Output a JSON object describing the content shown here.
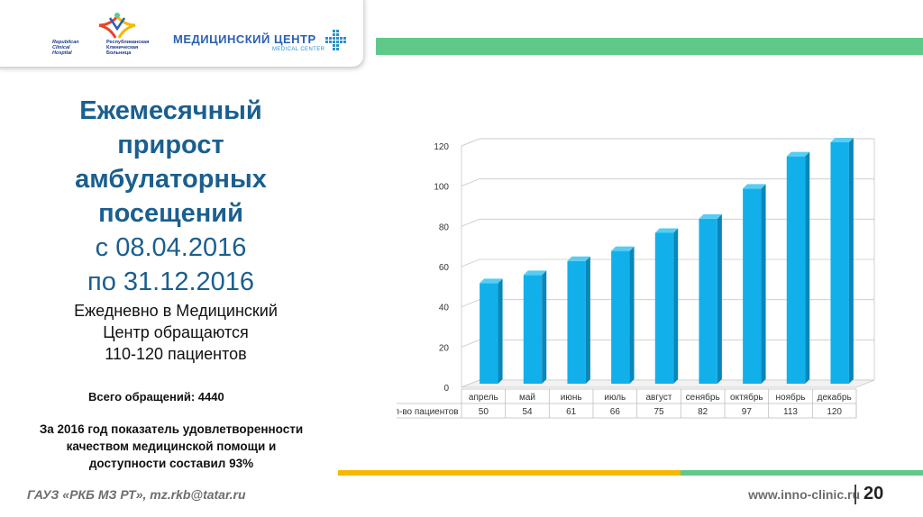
{
  "header": {
    "logo_left_en": "Republican Clinical Hospital",
    "logo_left_ru": "Республиканская Клиническая Больница",
    "logo_right_main": "МЕДИЦИНСКИЙ ЦЕНТР",
    "logo_right_sub": "MEDICAL CENTER",
    "colors": {
      "accent_green": "#5fc98a",
      "accent_yellow": "#f5b800",
      "title_blue": "#1a5f8f"
    }
  },
  "title": {
    "line1": "Ежемесячный",
    "line2": "прирост",
    "line3": "амбулаторных",
    "line4": "посещений",
    "line5": "с 08.04.2016",
    "line6": "по 31.12.2016"
  },
  "daily": {
    "line1": "Ежедневно в Медицинский",
    "line2": "Центр обращаются",
    "line3": "110-120 пациентов"
  },
  "total": "Всего обращений: 4440",
  "satisfaction": {
    "line1": "За 2016 год показатель удовлетворенности",
    "line2": "качеством медицинской помощи и",
    "line3": "доступности составил 93%"
  },
  "footer": {
    "left": "ГАУЗ «РКБ МЗ РТ»,  mz.rkb@tatar.ru",
    "right": "www.inno-clinic.ru",
    "page": "20"
  },
  "chart_data": {
    "type": "bar",
    "categories": [
      "апрель",
      "май",
      "июнь",
      "июль",
      "август",
      "сенябрь",
      "октябрь",
      "ноябрь",
      "декабрь"
    ],
    "series": [
      {
        "name": "Кол-во пациентов",
        "values": [
          50,
          54,
          61,
          66,
          75,
          82,
          97,
          113,
          120
        ],
        "color": "#12b0ea"
      }
    ],
    "ylim": [
      0,
      120
    ],
    "yticks": [
      0,
      20,
      40,
      60,
      80,
      100,
      120
    ],
    "grid": true,
    "legend": "data-table",
    "title": "",
    "xlabel": "",
    "ylabel": ""
  }
}
